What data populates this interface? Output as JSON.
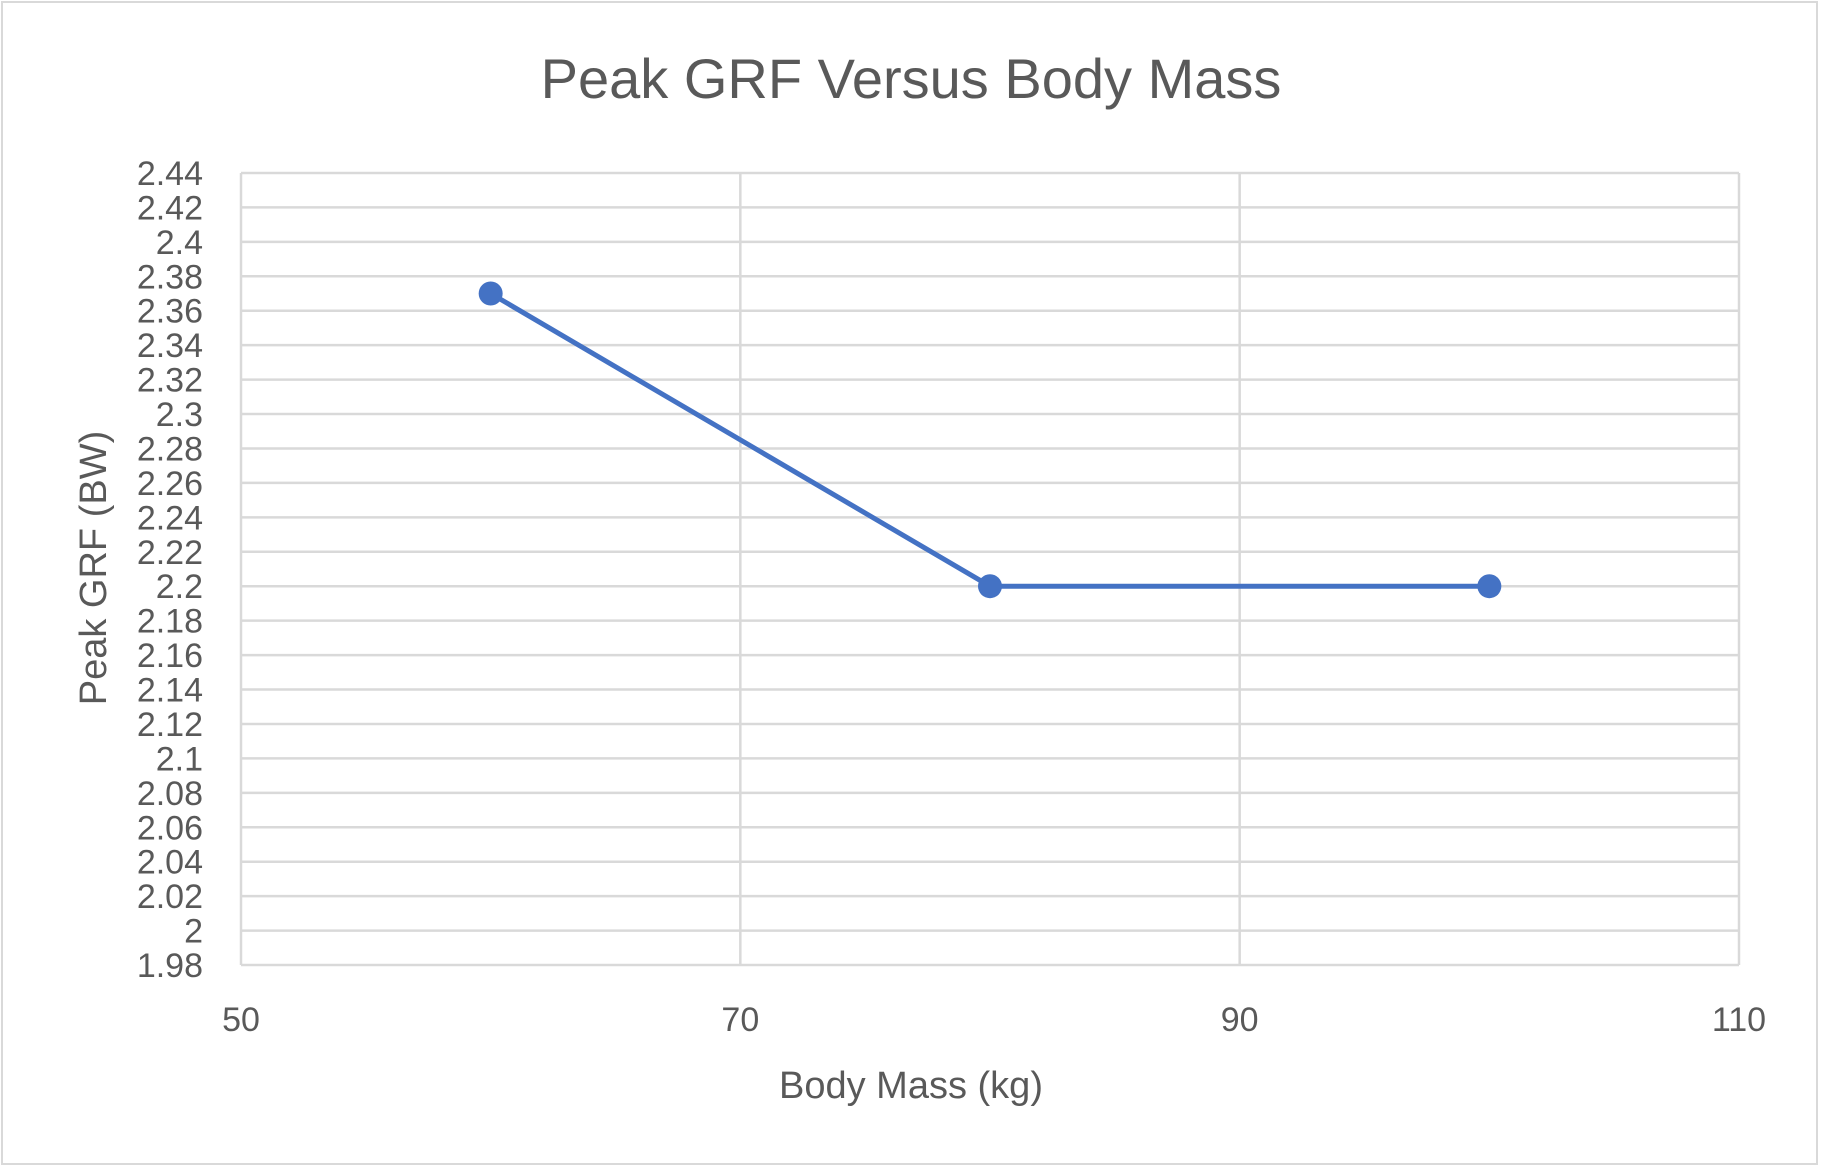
{
  "chart_data": {
    "type": "line",
    "title": "Peak GRF Versus Body Mass",
    "xlabel": "Body Mass (kg)",
    "ylabel": "Peak GRF (BW)",
    "xlim": [
      50,
      110
    ],
    "ylim": [
      1.98,
      2.44
    ],
    "xticks": [
      50,
      70,
      90,
      110
    ],
    "yticks": [
      1.98,
      2,
      2.02,
      2.04,
      2.06,
      2.08,
      2.1,
      2.12,
      2.14,
      2.16,
      2.18,
      2.2,
      2.22,
      2.24,
      2.26,
      2.28,
      2.3,
      2.32,
      2.34,
      2.36,
      2.38,
      2.4,
      2.42,
      2.44
    ],
    "grid": true,
    "legend": "none",
    "series": [
      {
        "name": "Peak GRF",
        "color": "#4472c4",
        "x": [
          60,
          80,
          100
        ],
        "y": [
          2.37,
          2.2,
          2.2
        ]
      }
    ]
  }
}
